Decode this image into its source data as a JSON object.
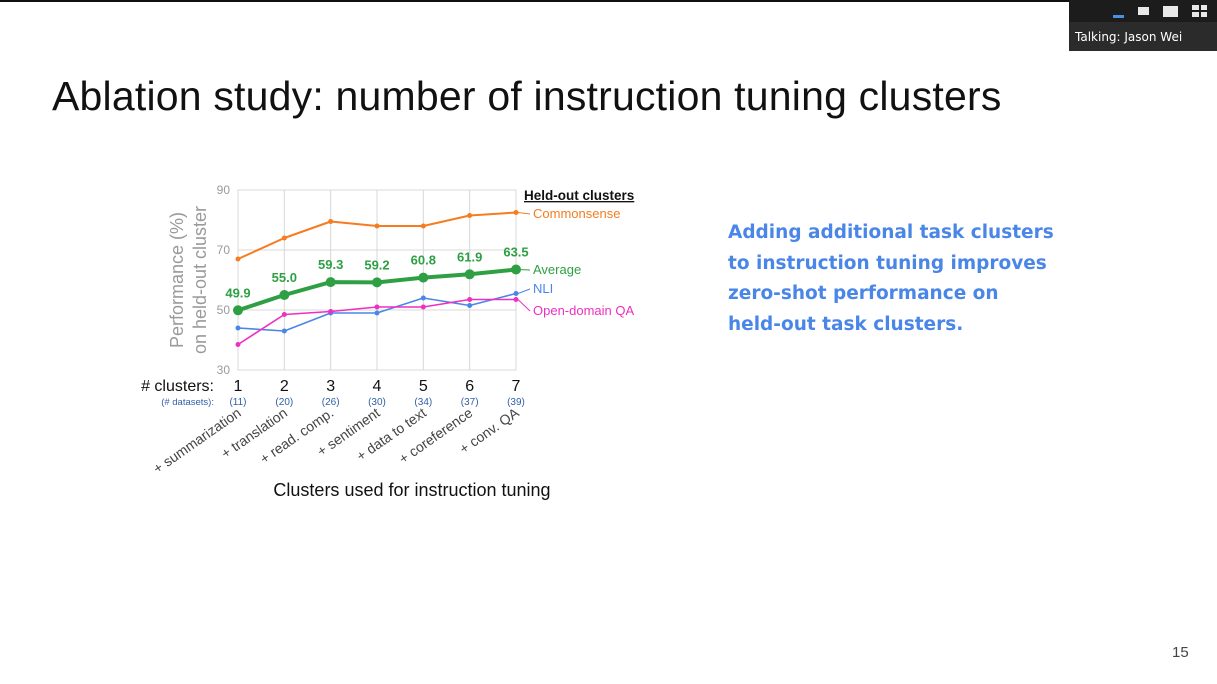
{
  "window": {
    "view_controls": [
      "minimize-icon",
      "small-view-icon",
      "large-view-icon",
      "grid-view-icon"
    ],
    "talking_indicator": "Talking: Jason Wei"
  },
  "slide": {
    "title": "Ablation study: number of instruction tuning clusters",
    "callout_lines": [
      "Adding additional task clusters",
      "to instruction tuning improves",
      "zero-shot performance on",
      "held-out task clusters."
    ],
    "callout_color": "#4a86e8",
    "page_number": "15"
  },
  "chart_data": {
    "type": "line",
    "ylabel": [
      "Performance (%)",
      "on held-out cluster"
    ],
    "xlabel": "Clusters used for instruction tuning",
    "ylim": [
      30,
      90
    ],
    "yticks": [
      30,
      50,
      70,
      90
    ],
    "grid": true,
    "x": [
      1,
      2,
      3,
      4,
      5,
      6,
      7
    ],
    "x_row_label": "# clusters:",
    "datasets_row_label": "(# datasets):",
    "datasets": [
      "(11)",
      "(20)",
      "(26)",
      "(30)",
      "(34)",
      "(37)",
      "(39)"
    ],
    "cluster_names": [
      "+ summarization",
      "+ translation",
      "+ read. comp.",
      "+ sentiment",
      "+ data to text",
      "+ coreference",
      "+ conv. QA"
    ],
    "legend_title": "Held-out clusters",
    "series": [
      {
        "name": "Commonsense",
        "color": "#f57c20",
        "width": 2,
        "values": [
          67,
          74,
          79.5,
          78,
          78,
          81.5,
          82.5
        ]
      },
      {
        "name": "Average",
        "color": "#2ea043",
        "width": 4,
        "values": [
          49.9,
          55.0,
          59.3,
          59.2,
          60.8,
          61.9,
          63.5
        ],
        "labels": [
          "49.9",
          "55.0",
          "59.3",
          "59.2",
          "60.8",
          "61.9",
          "63.5"
        ]
      },
      {
        "name": "NLI",
        "color": "#4a86e8",
        "width": 1.6,
        "values": [
          44,
          43,
          49,
          49,
          54,
          51.5,
          55.5
        ]
      },
      {
        "name": "Open-domain QA",
        "color": "#ee2fc2",
        "width": 1.6,
        "values": [
          38.5,
          48.5,
          49.5,
          51,
          51,
          53.5,
          53.5
        ]
      }
    ]
  }
}
